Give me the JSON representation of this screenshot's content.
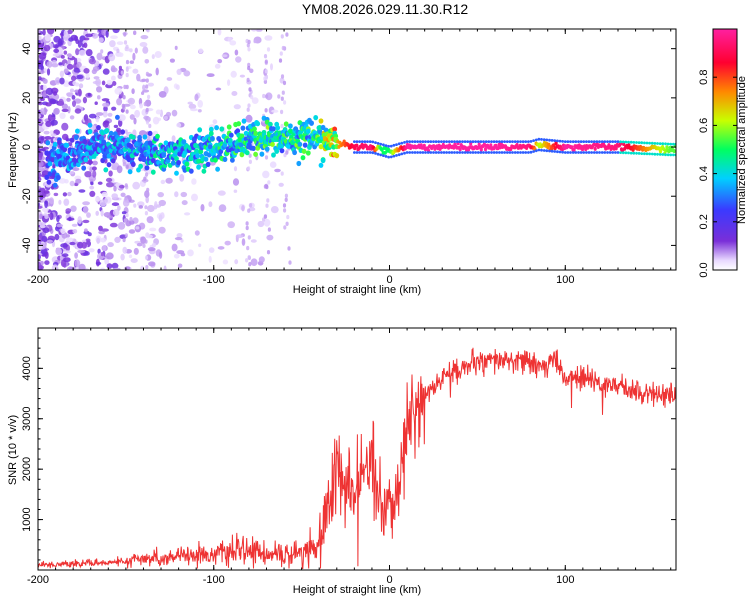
{
  "figure_title": "YM08.2026.029.11.30.R12",
  "chart_data": [
    {
      "type": "heatmap",
      "title": "YM08.2026.029.11.30.R12",
      "xlabel": "Height of straight line (km)",
      "ylabel": "Frequency (Hz)",
      "xlim": [
        -200,
        163
      ],
      "ylim": [
        -50,
        48
      ],
      "xticks": [
        -200,
        -100,
        0,
        100
      ],
      "yticks": [
        -40,
        -20,
        0,
        20,
        40
      ],
      "xtick_labels": [
        "-200",
        "-100",
        "0",
        "100"
      ],
      "ytick_labels": [
        "-40",
        "-20",
        "0",
        "20",
        "40"
      ],
      "colorbar": {
        "label": "Normalized spectral amplitude",
        "range": [
          0,
          1
        ],
        "ticks": [
          0.0,
          0.2,
          0.4,
          0.6,
          0.8
        ],
        "tick_labels": [
          "0.0",
          "0.2",
          "0.4",
          "0.6",
          "0.8"
        ],
        "colormap": [
          "#ffffff",
          "#7a2fd8",
          "#3a3aff",
          "#00d0ff",
          "#00ff60",
          "#c8ff00",
          "#ff8800",
          "#ff0030",
          "#ff20a0"
        ]
      },
      "ridge": {
        "description": "Dominant Doppler frequency vs height",
        "x_km": [
          -190,
          -165,
          -150,
          -130,
          -110,
          -95,
          -80,
          -70,
          -60,
          -45,
          -35,
          -20,
          -10,
          -5,
          0,
          10,
          30,
          60,
          80,
          85,
          100,
          130,
          160
        ],
        "freq_hz": [
          -5,
          1,
          -1,
          -3,
          -2,
          0,
          3,
          4,
          3,
          5,
          2,
          0,
          0,
          -1,
          -2,
          0,
          0,
          0,
          0,
          1,
          0,
          0,
          -1
        ],
        "amplitude": [
          0.3,
          0.35,
          0.35,
          0.4,
          0.4,
          0.45,
          0.45,
          0.5,
          0.45,
          0.5,
          0.6,
          0.9,
          0.95,
          0.5,
          0.5,
          1.0,
          1.0,
          1.0,
          0.95,
          0.6,
          1.0,
          0.95,
          0.55
        ]
      }
    },
    {
      "type": "line",
      "xlabel": "Height of straight line (km)",
      "ylabel": "SNR (10 * v/v)",
      "xlim": [
        -200,
        163
      ],
      "ylim": [
        0,
        4800
      ],
      "xticks": [
        -200,
        -100,
        0,
        100
      ],
      "yticks": [
        1000,
        2000,
        3000,
        4000
      ],
      "xtick_labels": [
        "-200",
        "-100",
        "0",
        "100"
      ],
      "ytick_labels": [
        "1000",
        "2000",
        "3000",
        "4000"
      ],
      "color": "#ee3333",
      "series": [
        {
          "name": "SNR",
          "x": [
            -200,
            -180,
            -160,
            -140,
            -120,
            -100,
            -80,
            -60,
            -50,
            -40,
            -35,
            -30,
            -25,
            -20,
            -15,
            -10,
            -5,
            0,
            5,
            10,
            15,
            20,
            25,
            30,
            40,
            50,
            60,
            70,
            80,
            90,
            95,
            100,
            110,
            120,
            130,
            140,
            150,
            163
          ],
          "y": [
            100,
            120,
            150,
            200,
            280,
            320,
            380,
            300,
            350,
            500,
            1300,
            2000,
            1600,
            1500,
            1800,
            2200,
            1200,
            1100,
            1700,
            2800,
            3200,
            3500,
            3600,
            3800,
            4000,
            4100,
            4150,
            4150,
            4100,
            4000,
            4200,
            3800,
            3800,
            3700,
            3650,
            3550,
            3500,
            3450
          ]
        }
      ]
    }
  ]
}
